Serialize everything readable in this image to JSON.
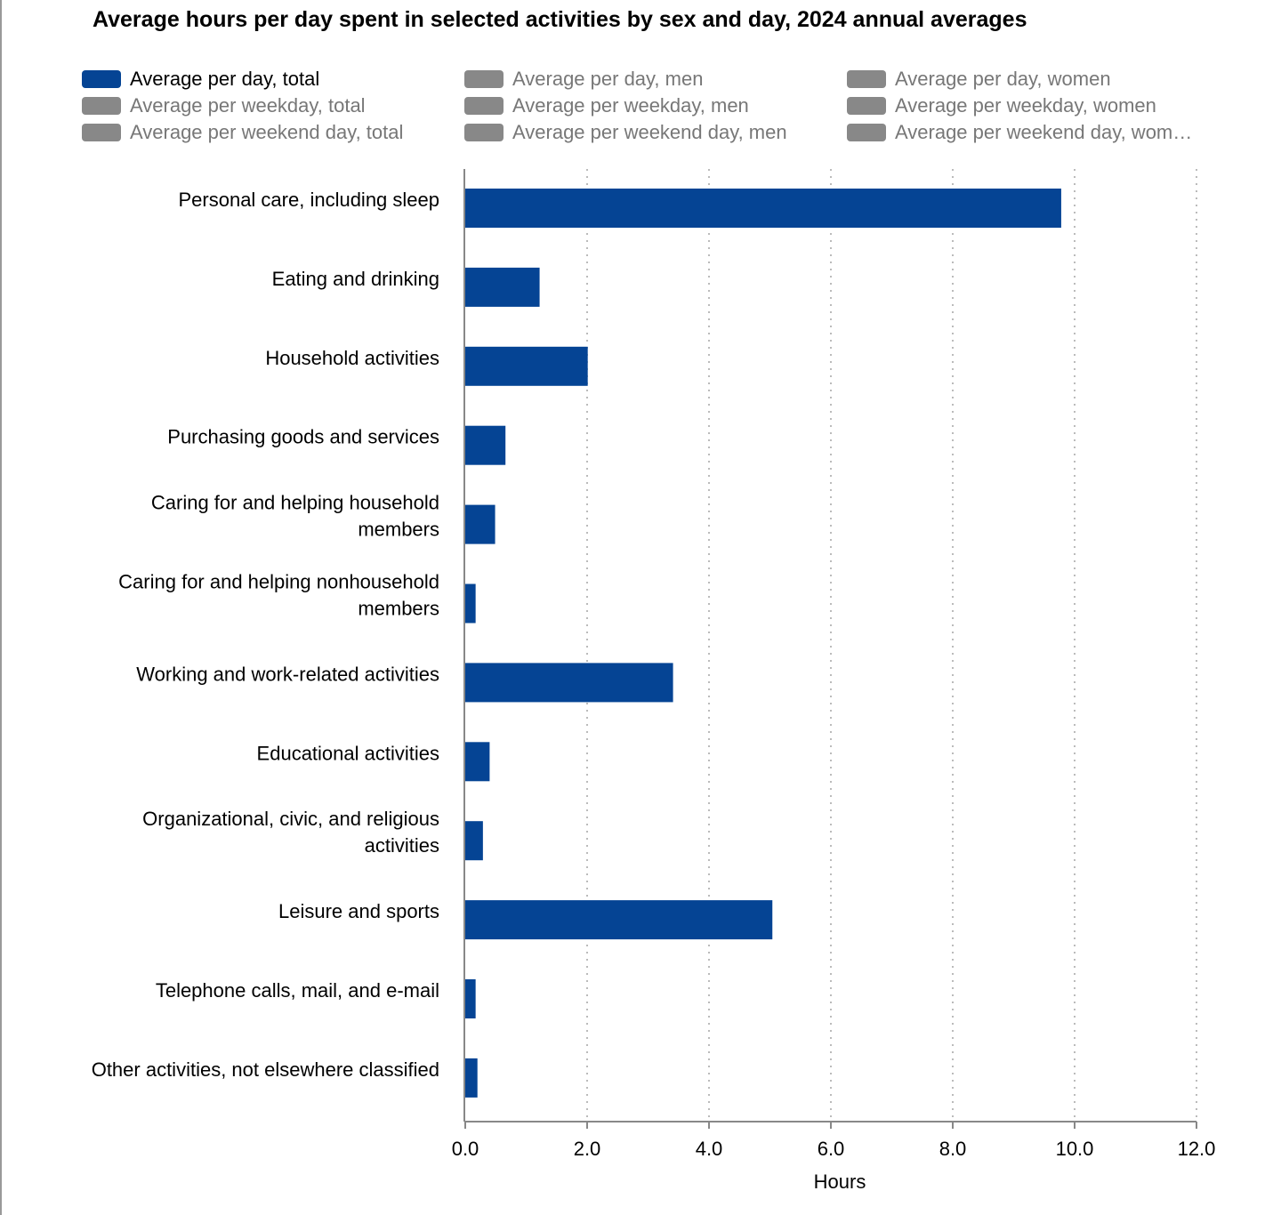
{
  "chart_data": {
    "type": "bar",
    "orientation": "horizontal",
    "title": "Average hours per day spent in selected activities by sex and day, 2024 annual averages",
    "xlabel": "Hours",
    "ylabel": "",
    "xlim": [
      0,
      12
    ],
    "xticks": [
      "0.0",
      "2.0",
      "4.0",
      "6.0",
      "8.0",
      "10.0",
      "12.0"
    ],
    "grid": true,
    "legend_position": "top",
    "legend": [
      {
        "label": "Average per day, total",
        "active": true
      },
      {
        "label": "Average per day, men",
        "active": false
      },
      {
        "label": "Average per day, women",
        "active": false
      },
      {
        "label": "Average per weekday, total",
        "active": false
      },
      {
        "label": "Average per weekday, men",
        "active": false
      },
      {
        "label": "Average per weekday, women",
        "active": false
      },
      {
        "label": "Average per weekend day, total",
        "active": false
      },
      {
        "label": "Average per weekend day, men",
        "active": false
      },
      {
        "label": "Average per weekend day, wom…",
        "active": false
      }
    ],
    "categories": [
      [
        "Personal care, including sleep"
      ],
      [
        "Eating and drinking"
      ],
      [
        "Household activities"
      ],
      [
        "Purchasing goods and services"
      ],
      [
        "Caring for and helping household",
        "members"
      ],
      [
        "Caring for and helping nonhousehold",
        "members"
      ],
      [
        "Working and work-related activities"
      ],
      [
        "Educational activities"
      ],
      [
        "Organizational, civic, and religious",
        "activities"
      ],
      [
        "Leisure and sports"
      ],
      [
        "Telephone calls, mail, and e-mail"
      ],
      [
        "Other activities, not elsewhere classified"
      ]
    ],
    "series": [
      {
        "name": "Average per day, total",
        "values": [
          9.78,
          1.22,
          2.01,
          0.66,
          0.49,
          0.17,
          3.41,
          0.4,
          0.29,
          5.04,
          0.17,
          0.2
        ]
      }
    ]
  },
  "colors": {
    "active": "#054494",
    "inactive": "#888888",
    "inactive_text": "#777777",
    "active_text": "#000000",
    "grid": "#bbbbbb",
    "axis": "#888888"
  }
}
